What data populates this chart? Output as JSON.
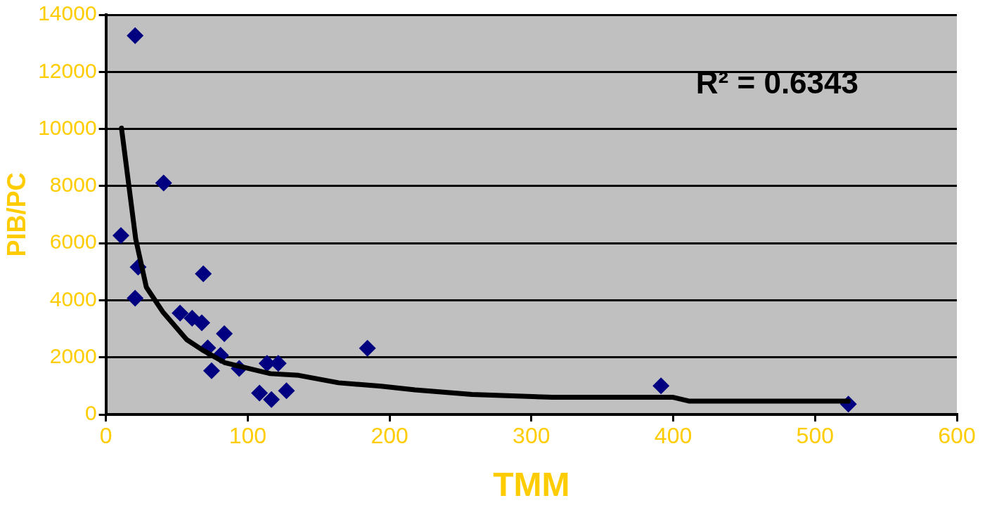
{
  "chart_data": {
    "type": "scatter",
    "xlabel": "TMM",
    "ylabel": "PIB/PC",
    "xlim": [
      0,
      600
    ],
    "xticks": [
      0,
      100,
      200,
      300,
      400,
      500,
      600
    ],
    "ylim": [
      0,
      14000
    ],
    "yticks": [
      0,
      2000,
      4000,
      6000,
      8000,
      10000,
      12000,
      14000
    ],
    "grid": "y",
    "legend": false,
    "marker": "diamond",
    "annotations": [
      "R² = 0.6343"
    ],
    "series": [
      {
        "color": "#000080",
        "x": [
          20.6,
          40.7,
          10.6,
          22.7,
          68.7,
          20.6,
          52.3,
          60.8,
          67.6,
          83.5,
          71.8,
          80.8,
          74.5,
          94,
          113.6,
          121.5,
          108.3,
          116.7,
          127.3,
          184.4,
          391.4,
          523.5
        ],
        "values": [
          13270,
          8110,
          6270,
          5160,
          4930,
          4070,
          3550,
          3370,
          3210,
          2830,
          2330,
          2070,
          1530,
          1610,
          1790,
          1790,
          750,
          520,
          830,
          2320,
          1000,
          360
        ]
      },
      {
        "type": "line",
        "marker": "none",
        "color": "#000000",
        "x": [
          11,
          21,
          28.5,
          40,
          57,
          68,
          84,
          105,
          116,
          136,
          164,
          194,
          218,
          258,
          315,
          400,
          411,
          523.5
        ],
        "values": [
          10030,
          6150,
          4460,
          3600,
          2620,
          2260,
          1810,
          1560,
          1430,
          1370,
          1110,
          990,
          860,
          700,
          600,
          600,
          470,
          470
        ]
      }
    ]
  }
}
